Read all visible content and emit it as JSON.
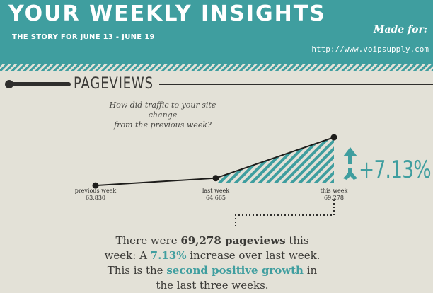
{
  "header": {
    "title": "YOUR WEEKLY INSIGHTS",
    "subtitle": "THE STORY FOR JUNE 13 - JUNE 19",
    "made_for": "Made for:",
    "url": "http://www.voipsupply.com"
  },
  "section": {
    "title": "PAGEVIEWS",
    "question_line1": "How did traffic to your site change",
    "question_line2": "from the previous week?"
  },
  "change": {
    "value": "+7.13%",
    "direction": "up",
    "arrow_icon": "up-arrow-icon"
  },
  "summary": {
    "part1": "There were ",
    "bold1": "69,278 pageviews",
    "part2": " this week: A ",
    "teal1": "7.13%",
    "part3": " increase over last week. This is the ",
    "teal2": "second positive growth",
    "part4": " in the last three weeks."
  },
  "colors": {
    "accent": "#3f9e9f",
    "background": "#e3e1d7",
    "dark": "#2f2e2c"
  },
  "chart_data": {
    "type": "line",
    "categories": [
      "previous week",
      "last week",
      "this week"
    ],
    "values": [
      63830,
      64665,
      69278
    ],
    "value_labels": [
      "63,830",
      "64,665",
      "69,278"
    ],
    "ylim": [
      60000,
      70000
    ],
    "grid": false,
    "highlight": "hatched area under last segment"
  }
}
